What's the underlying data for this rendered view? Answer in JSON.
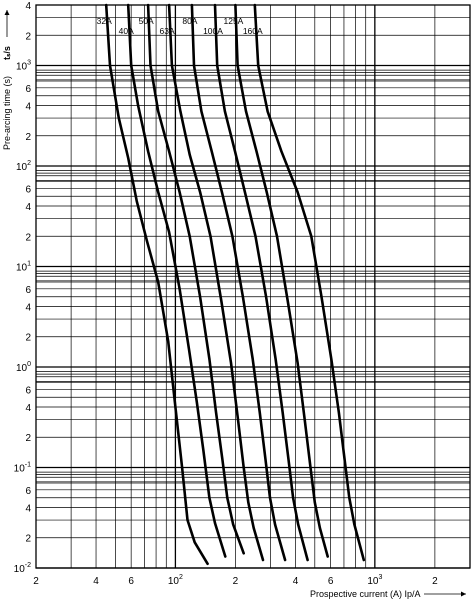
{
  "chart_data": {
    "type": "line",
    "xlabel": "Prospective current (A) Ip/A",
    "ylabel": "Pre-arcing time (s)",
    "ylabel_symbol": "tₛ/s",
    "x_scale": "log",
    "y_scale": "log",
    "xlim": [
      20,
      3000
    ],
    "ylim": [
      0.01,
      4000
    ],
    "grid": true,
    "x_ticks": [
      {
        "base": "2",
        "exp": "",
        "value": 20
      },
      {
        "base": "4",
        "exp": "",
        "value": 40
      },
      {
        "base": "6",
        "exp": "",
        "value": 60
      },
      {
        "base": "10",
        "exp": "2",
        "value": 100
      },
      {
        "base": "2",
        "exp": "",
        "value": 200
      },
      {
        "base": "4",
        "exp": "",
        "value": 400
      },
      {
        "base": "6",
        "exp": "",
        "value": 600
      },
      {
        "base": "10",
        "exp": "3",
        "value": 1000
      },
      {
        "base": "2",
        "exp": "",
        "value": 2000
      }
    ],
    "y_ticks": [
      {
        "base": "4",
        "exp": "",
        "value": 4000
      },
      {
        "base": "2",
        "exp": "",
        "value": 2000
      },
      {
        "base": "10",
        "exp": "3",
        "value": 1000
      },
      {
        "base": "6",
        "exp": "",
        "value": 600
      },
      {
        "base": "4",
        "exp": "",
        "value": 400
      },
      {
        "base": "2",
        "exp": "",
        "value": 200
      },
      {
        "base": "10",
        "exp": "2",
        "value": 100
      },
      {
        "base": "6",
        "exp": "",
        "value": 60
      },
      {
        "base": "4",
        "exp": "",
        "value": 40
      },
      {
        "base": "2",
        "exp": "",
        "value": 20
      },
      {
        "base": "10",
        "exp": "1",
        "value": 10
      },
      {
        "base": "6",
        "exp": "",
        "value": 6
      },
      {
        "base": "4",
        "exp": "",
        "value": 4
      },
      {
        "base": "2",
        "exp": "",
        "value": 2
      },
      {
        "base": "10",
        "exp": "0",
        "value": 1
      },
      {
        "base": "6",
        "exp": "",
        "value": 0.6
      },
      {
        "base": "4",
        "exp": "",
        "value": 0.4
      },
      {
        "base": "2",
        "exp": "",
        "value": 0.2
      },
      {
        "base": "10",
        "exp": "-1",
        "value": 0.1
      },
      {
        "base": "6",
        "exp": "",
        "value": 0.06
      },
      {
        "base": "4",
        "exp": "",
        "value": 0.04
      },
      {
        "base": "2",
        "exp": "",
        "value": 0.02
      },
      {
        "base": "10",
        "exp": "-2",
        "value": 0.01
      }
    ],
    "series": [
      {
        "name": "32A",
        "points": [
          [
            45,
            4000
          ],
          [
            47,
            1000
          ],
          [
            52,
            300
          ],
          [
            58,
            120
          ],
          [
            64,
            45
          ],
          [
            72,
            18
          ],
          [
            82,
            7
          ],
          [
            92,
            1.8
          ],
          [
            100,
            0.4
          ],
          [
            108,
            0.1
          ],
          [
            115,
            0.03
          ],
          [
            125,
            0.018
          ],
          [
            145,
            0.011
          ]
        ]
      },
      {
        "name": "40A",
        "points": [
          [
            58,
            4000
          ],
          [
            60,
            1000
          ],
          [
            65,
            400
          ],
          [
            73,
            140
          ],
          [
            82,
            55
          ],
          [
            93,
            22
          ],
          [
            105,
            6
          ],
          [
            117,
            1.5
          ],
          [
            128,
            0.45
          ],
          [
            138,
            0.15
          ],
          [
            148,
            0.05
          ],
          [
            158,
            0.028
          ],
          [
            178,
            0.013
          ]
        ]
      },
      {
        "name": "50A",
        "points": [
          [
            73,
            4000
          ],
          [
            75,
            1000
          ],
          [
            82,
            350
          ],
          [
            93,
            140
          ],
          [
            105,
            55
          ],
          [
            118,
            20
          ],
          [
            133,
            5
          ],
          [
            148,
            1.2
          ],
          [
            160,
            0.35
          ],
          [
            172,
            0.12
          ],
          [
            182,
            0.05
          ],
          [
            195,
            0.027
          ],
          [
            220,
            0.014
          ]
        ]
      },
      {
        "name": "63A",
        "points": [
          [
            93,
            4000
          ],
          [
            96,
            1000
          ],
          [
            106,
            350
          ],
          [
            118,
            130
          ],
          [
            133,
            55
          ],
          [
            150,
            20
          ],
          [
            170,
            4.5
          ],
          [
            190,
            1.1
          ],
          [
            206,
            0.3
          ],
          [
            220,
            0.1
          ],
          [
            232,
            0.045
          ],
          [
            247,
            0.025
          ],
          [
            275,
            0.012
          ]
        ]
      },
      {
        "name": "80A",
        "points": [
          [
            121,
            4000
          ],
          [
            124,
            1000
          ],
          [
            135,
            350
          ],
          [
            152,
            140
          ],
          [
            171,
            55
          ],
          [
            193,
            20
          ],
          [
            218,
            5
          ],
          [
            244,
            1.2
          ],
          [
            265,
            0.35
          ],
          [
            283,
            0.12
          ],
          [
            298,
            0.05
          ],
          [
            316,
            0.027
          ],
          [
            355,
            0.012
          ]
        ]
      },
      {
        "name": "100A",
        "points": [
          [
            158,
            4000
          ],
          [
            162,
            1000
          ],
          [
            177,
            350
          ],
          [
            199,
            140
          ],
          [
            223,
            55
          ],
          [
            252,
            20
          ],
          [
            285,
            5
          ],
          [
            318,
            1.2
          ],
          [
            345,
            0.35
          ],
          [
            369,
            0.12
          ],
          [
            389,
            0.05
          ],
          [
            413,
            0.027
          ],
          [
            460,
            0.012
          ]
        ]
      },
      {
        "name": "125A",
        "points": [
          [
            200,
            4000
          ],
          [
            205,
            1000
          ],
          [
            226,
            350
          ],
          [
            255,
            140
          ],
          [
            287,
            55
          ],
          [
            323,
            20
          ],
          [
            366,
            4.5
          ],
          [
            410,
            1.1
          ],
          [
            445,
            0.3
          ],
          [
            476,
            0.1
          ],
          [
            500,
            0.045
          ],
          [
            530,
            0.025
          ],
          [
            580,
            0.013
          ]
        ]
      },
      {
        "name": "160A",
        "points": [
          [
            250,
            4000
          ],
          [
            260,
            1000
          ],
          [
            290,
            350
          ],
          [
            340,
            140
          ],
          [
            410,
            55
          ],
          [
            480,
            20
          ],
          [
            540,
            5
          ],
          [
            605,
            1.2
          ],
          [
            660,
            0.35
          ],
          [
            705,
            0.12
          ],
          [
            745,
            0.05
          ],
          [
            790,
            0.027
          ],
          [
            880,
            0.012
          ]
        ]
      }
    ]
  }
}
